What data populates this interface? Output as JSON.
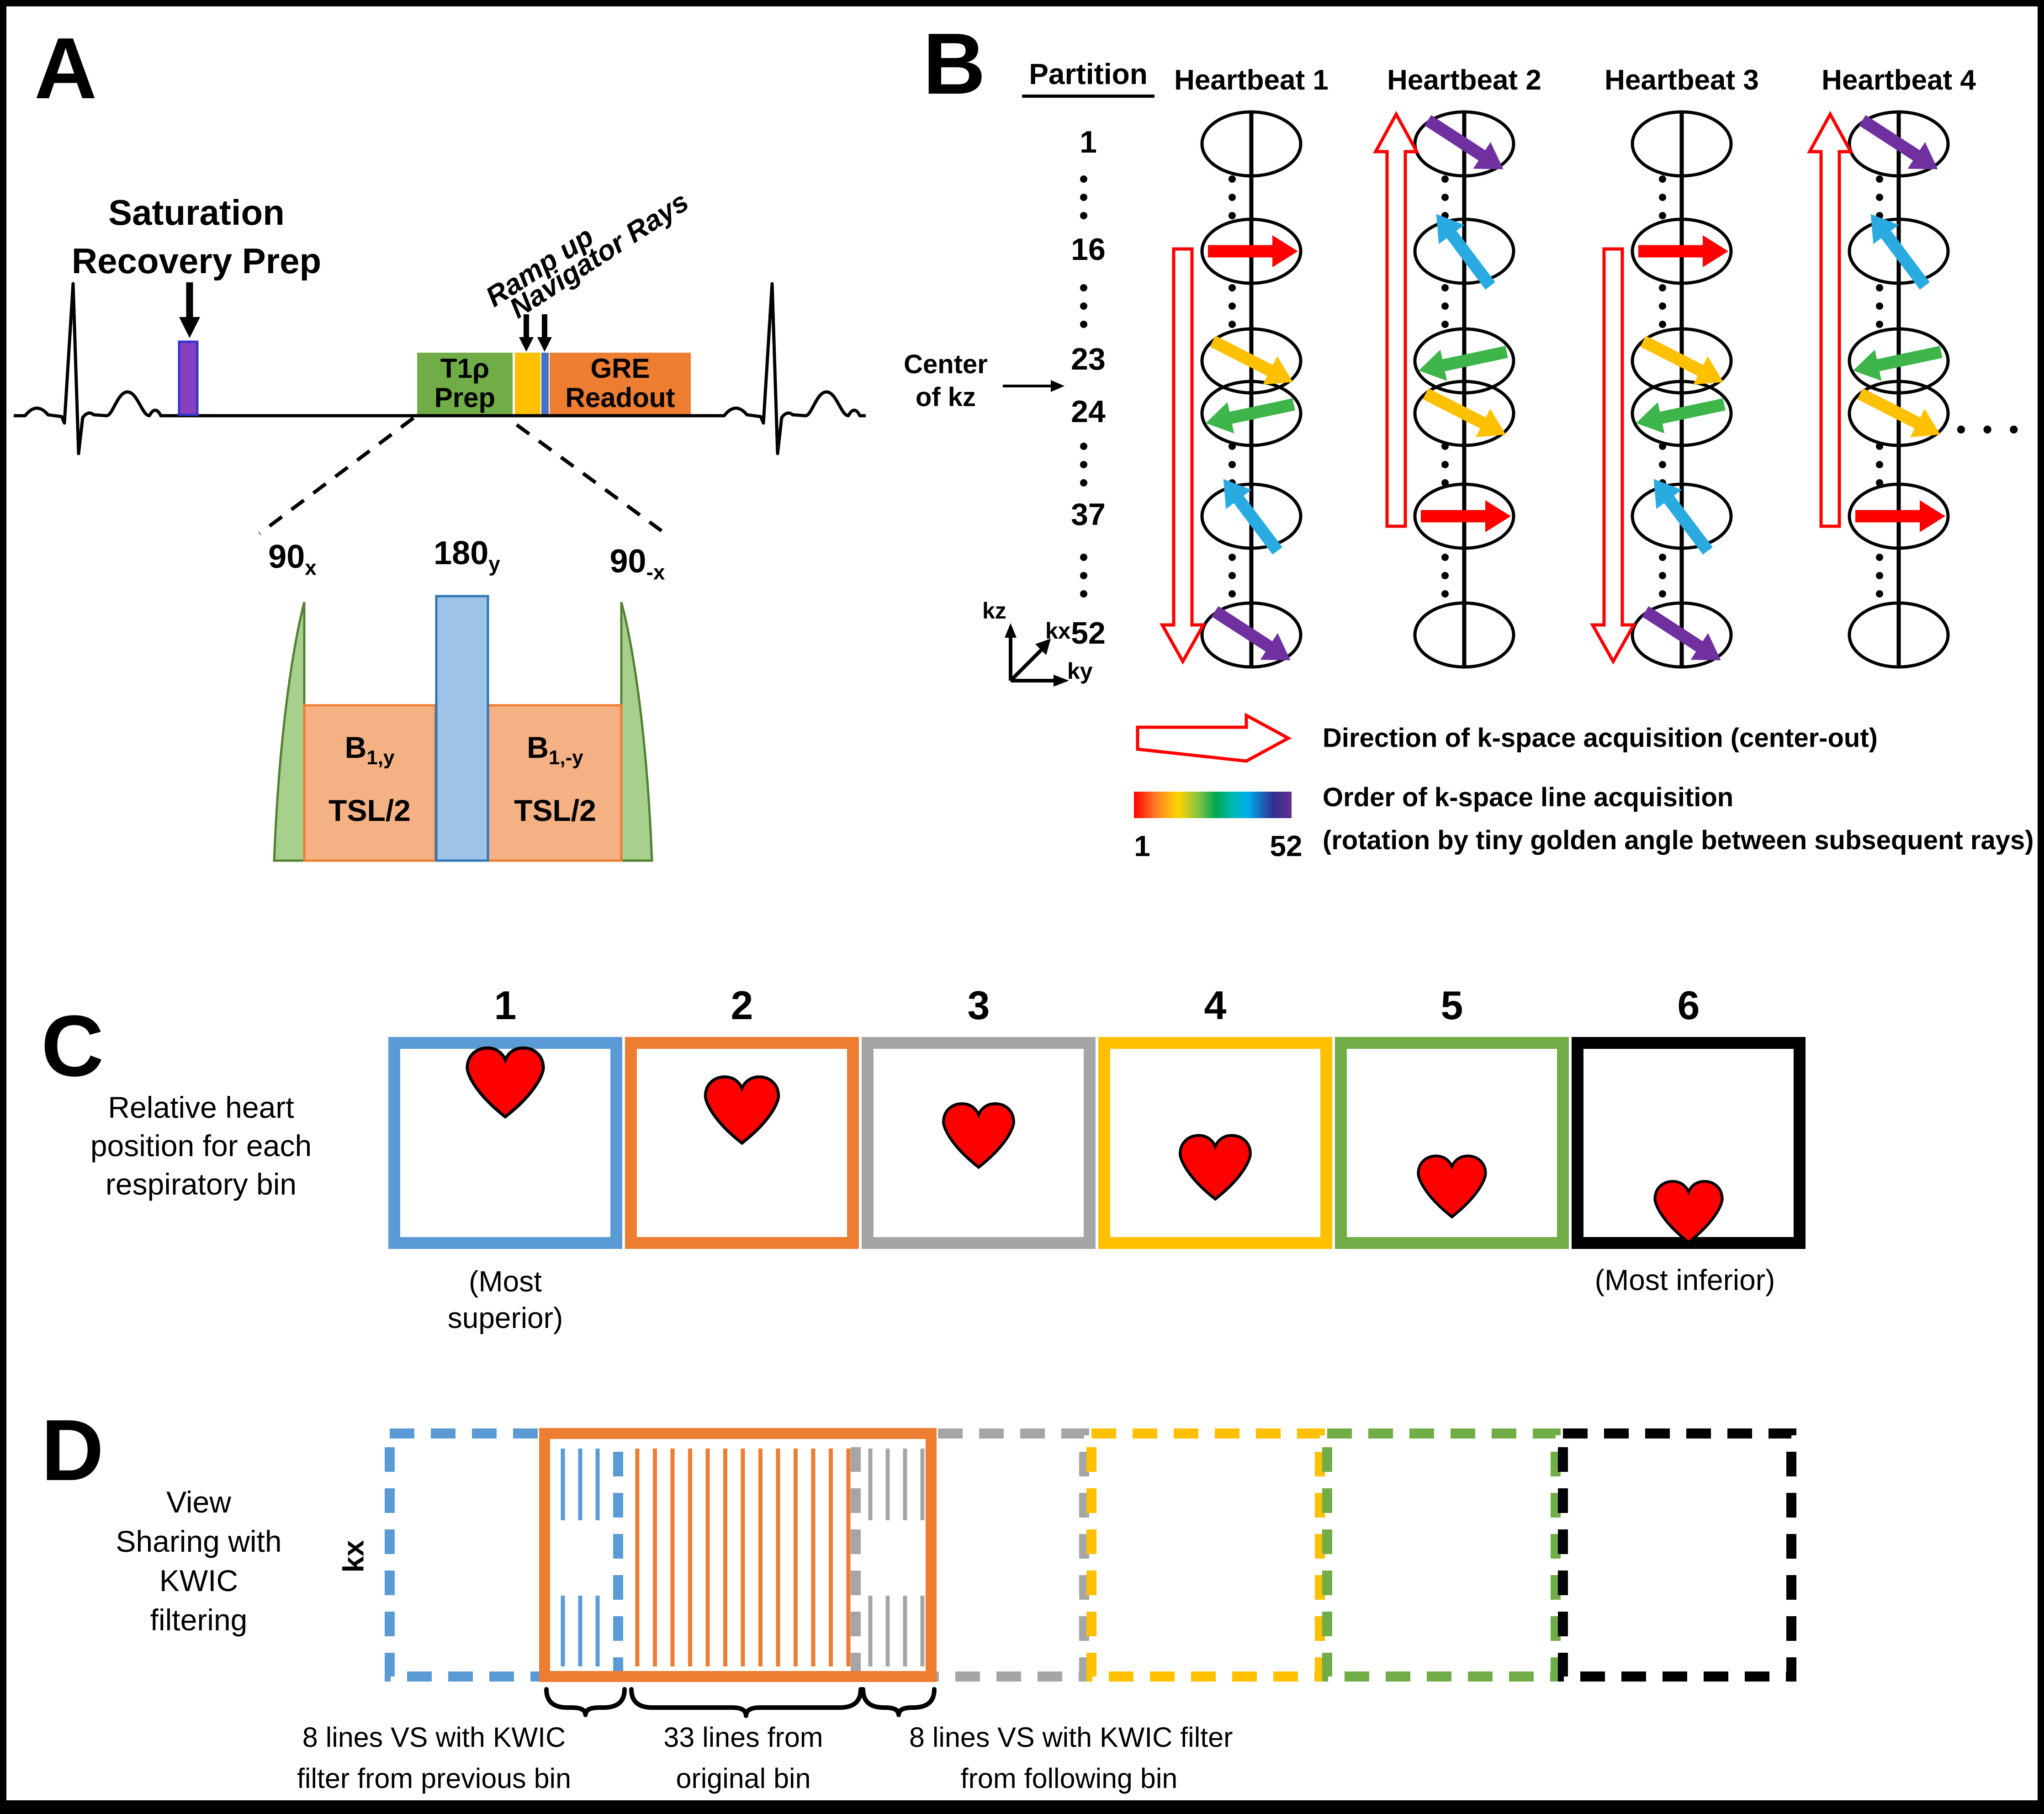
{
  "colors": {
    "bin_blue": "#5B9BD5",
    "bin_orange": "#ED7D31",
    "bin_gray": "#A5A5A5",
    "bin_yellow": "#FFC000",
    "bin_green": "#70AD47",
    "bin_black": "#000000",
    "arrow_red": "#FF0000",
    "arrow_yellow": "#FFC000",
    "arrow_green": "#3DB54A",
    "arrow_blue": "#29ABE2",
    "arrow_purple": "#7030A0",
    "hollow_arrow_red": "#FF0000",
    "heart_red": "#FF0000",
    "sat_pulse_fill": "#8640BE",
    "sat_pulse_stroke": "#3333CC",
    "t1rho_green": "#70AD47",
    "ramp_yellow": "#FFC000",
    "nav_blue": "#4472C4",
    "gre_orange": "#ED7D31",
    "lens_fill": "#A8D08D",
    "lens_stroke": "#538135",
    "b1_fill": "#F4B183",
    "b1_stroke": "#ED7D31",
    "refocus_fill": "#9DC3E6",
    "refocus_stroke": "#2E75B6"
  },
  "panel_a": {
    "label": "A",
    "saturation_prep": {
      "line1": "Saturation",
      "line2": "Recovery Prep"
    },
    "ramp_up": "Ramp up",
    "navigator_rays": "Navigator Rays",
    "t1rho_box": {
      "line1": "T1ρ",
      "line2": "Prep"
    },
    "gre_box": {
      "line1": "GRE",
      "line2": "Readout"
    },
    "pulses": {
      "p90x": {
        "base": "90",
        "sub": "x"
      },
      "p180y": {
        "base": "180",
        "sub": "y"
      },
      "p90negx": {
        "base": "90",
        "sub": "-x"
      },
      "spinlock1": {
        "base": "B",
        "sub": "1,y",
        "duration": "TSL/2"
      },
      "spinlock2": {
        "base": "B",
        "sub": "1,-y",
        "duration": "TSL/2"
      }
    }
  },
  "panel_b": {
    "label": "B",
    "partition_header": "Partition",
    "partition_rows": [
      "1",
      "16",
      "23",
      "24",
      "37",
      "52"
    ],
    "center_of_kz": {
      "line1": "Center",
      "line2": "of kz"
    },
    "axes": {
      "vertical": "kz",
      "diagonal": "kx",
      "horizontal": "ky"
    },
    "heartbeats": [
      {
        "title": "Heartbeat 1",
        "sweep": "down",
        "rays": {
          "16": "arrow_red",
          "23": "arrow_yellow",
          "24": "arrow_green",
          "37": "arrow_blue",
          "52": "arrow_purple"
        }
      },
      {
        "title": "Heartbeat 2",
        "sweep": "up",
        "rays": {
          "1": "arrow_purple",
          "16": "arrow_blue",
          "23": "arrow_green",
          "24": "arrow_yellow",
          "37": "arrow_red"
        }
      },
      {
        "title": "Heartbeat 3",
        "sweep": "down",
        "rays": {
          "16": "arrow_red",
          "23": "arrow_yellow",
          "24": "arrow_green",
          "37": "arrow_blue",
          "52": "arrow_purple"
        }
      },
      {
        "title": "Heartbeat 4",
        "sweep": "up",
        "rays": {
          "1": "arrow_purple",
          "16": "arrow_blue",
          "23": "arrow_green",
          "24": "arrow_yellow",
          "37": "arrow_red"
        }
      }
    ],
    "ellipsis": "• • •",
    "legend": {
      "direction": "Direction of k-space acquisition (center-out)",
      "order_line1": "Order of k-space line acquisition",
      "order_line2": "(rotation by tiny golden angle between subsequent rays)",
      "colorbar_start": "1",
      "colorbar_end": "52"
    }
  },
  "panel_c": {
    "label": "C",
    "caption": [
      "Relative heart",
      "position for each",
      "respiratory bin"
    ],
    "bins": [
      {
        "number": "1",
        "color_key": "bin_blue",
        "heart_y": 0.22,
        "heart_scale": 5.2
      },
      {
        "number": "2",
        "color_key": "bin_orange",
        "heart_y": 0.35,
        "heart_scale": 5.0
      },
      {
        "number": "3",
        "color_key": "bin_gray",
        "heart_y": 0.47,
        "heart_scale": 4.8
      },
      {
        "number": "4",
        "color_key": "bin_yellow",
        "heart_y": 0.62,
        "heart_scale": 4.8
      },
      {
        "number": "5",
        "color_key": "bin_green",
        "heart_y": 0.71,
        "heart_scale": 4.6
      },
      {
        "number": "6",
        "color_key": "bin_black",
        "heart_y": 0.83,
        "heart_scale": 4.6
      }
    ],
    "most_superior": [
      "(Most",
      "superior)"
    ],
    "most_inferior": "(Most inferior)"
  },
  "panel_d": {
    "label": "D",
    "caption": [
      "View",
      "Sharing with",
      "KWIC",
      "filtering"
    ],
    "kx_axis": "kx",
    "dashed_bins": [
      "bin_blue",
      "bin_gray",
      "bin_yellow",
      "bin_green",
      "bin_black"
    ],
    "original_box_color": "bin_orange",
    "shared_previous_color": "bin_blue",
    "shared_following_color": "bin_gray",
    "annotations": [
      {
        "lines": [
          "8 lines VS with KWIC",
          "filter from previous bin"
        ]
      },
      {
        "lines": [
          "33 lines from",
          "original bin"
        ]
      },
      {
        "lines": [
          "8 lines VS with KWIC filter",
          "from following bin"
        ]
      }
    ]
  }
}
